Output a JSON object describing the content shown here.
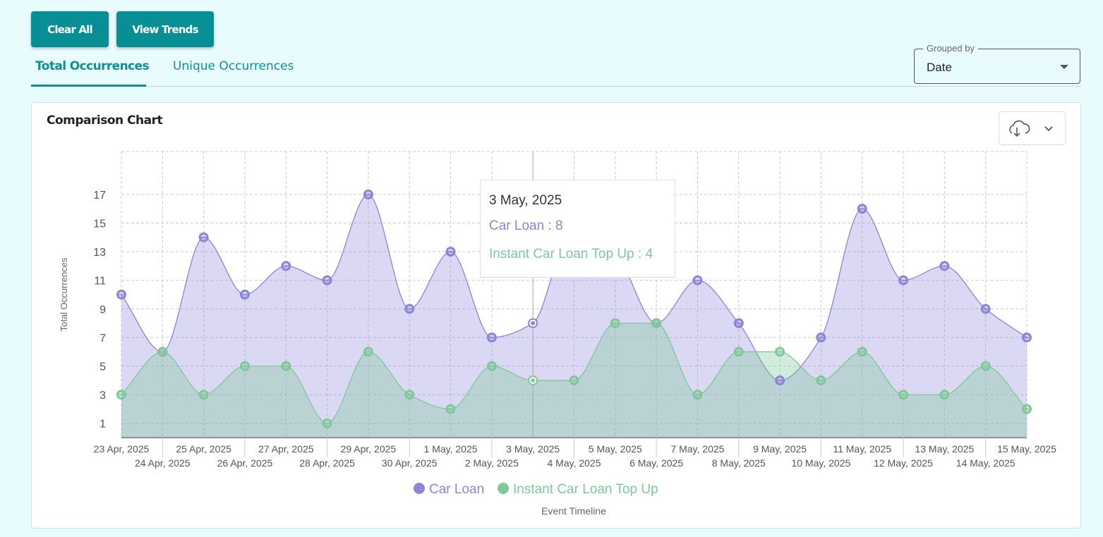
{
  "toolbar": {
    "clear_all": "Clear All",
    "view_trends": "View Trends"
  },
  "tabs": [
    {
      "label": "Total Occurrences",
      "active": true
    },
    {
      "label": "Unique Occurrences",
      "active": false
    }
  ],
  "grouped_by": {
    "label": "Grouped by",
    "value": "Date"
  },
  "card": {
    "title": "Comparison Chart",
    "download_icon": "cloud-download-icon",
    "menu_icon": "chevron-down-icon"
  },
  "tooltip": {
    "date": "3 May, 2025",
    "line1": "Car Loan : 8",
    "line2": "Instant Car Loan Top Up : 4"
  },
  "colors": {
    "accent": "#088f96",
    "car_loan": "#8b85d6",
    "top_up": "#7ec89a"
  },
  "chart_data": {
    "type": "area",
    "title": "Comparison Chart",
    "xlabel": "Event Timeline",
    "ylabel": "Total Occurrences",
    "ylim": [
      0,
      20
    ],
    "yticks": [
      1,
      3,
      5,
      7,
      9,
      11,
      13,
      15,
      17
    ],
    "grid": true,
    "legend_position": "bottom",
    "categories": [
      "23 Apr, 2025",
      "24 Apr, 2025",
      "25 Apr, 2025",
      "26 Apr, 2025",
      "27 Apr, 2025",
      "28 Apr, 2025",
      "29 Apr, 2025",
      "30 Apr, 2025",
      "1 May, 2025",
      "2 May, 2025",
      "3 May, 2025",
      "4 May, 2025",
      "5 May, 2025",
      "6 May, 2025",
      "7 May, 2025",
      "8 May, 2025",
      "9 May, 2025",
      "10 May, 2025",
      "11 May, 2025",
      "12 May, 2025",
      "13 May, 2025",
      "14 May, 2025",
      "15 May, 2025"
    ],
    "series": [
      {
        "name": "Car Loan",
        "values": [
          10,
          6,
          14,
          10,
          12,
          11,
          17,
          9,
          13,
          7,
          8,
          15,
          13,
          8,
          11,
          8,
          4,
          7,
          16,
          11,
          12,
          9,
          7
        ]
      },
      {
        "name": "Instant Car Loan Top Up",
        "values": [
          3,
          6,
          3,
          5,
          5,
          1,
          6,
          3,
          2,
          5,
          4,
          4,
          8,
          8,
          3,
          6,
          6,
          4,
          6,
          3,
          3,
          5,
          2
        ]
      }
    ],
    "highlighted_index": 10
  }
}
